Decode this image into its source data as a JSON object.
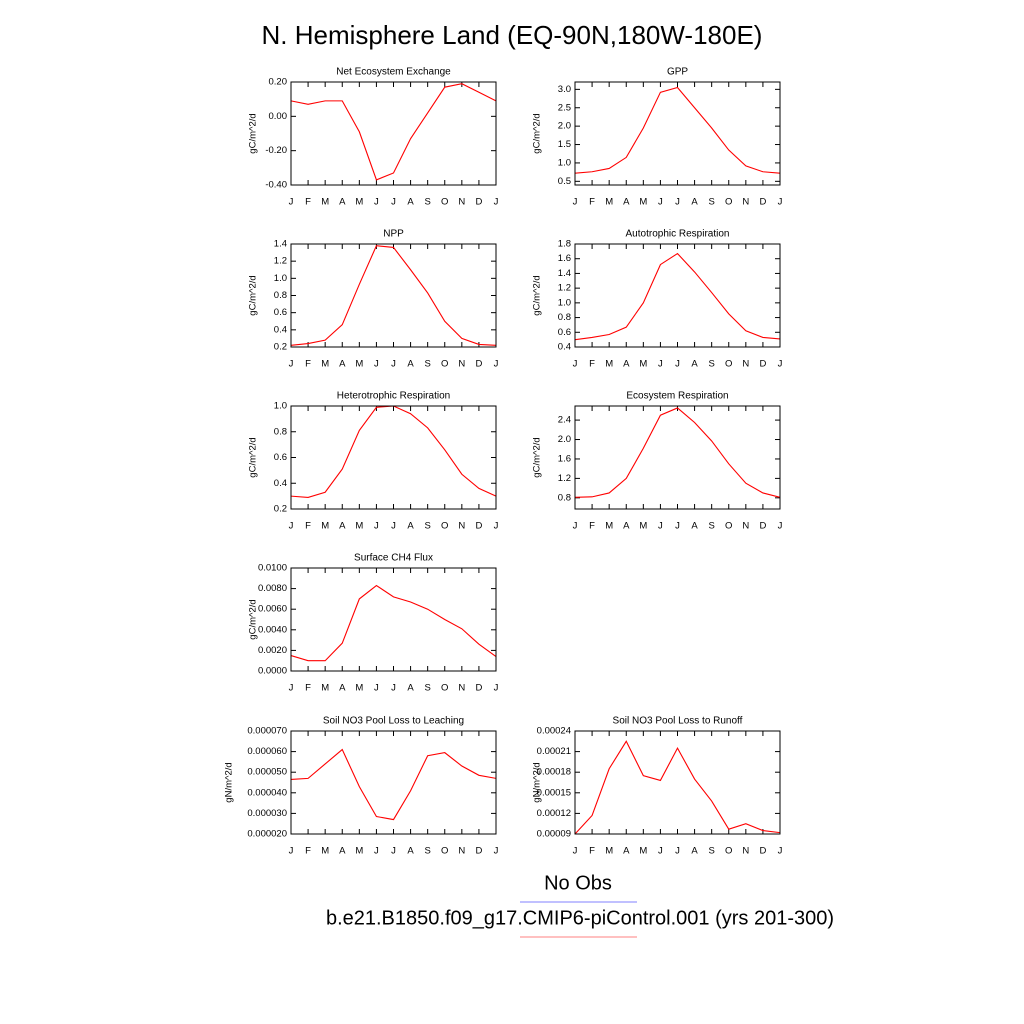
{
  "title": "N. Hemisphere Land (EQ-90N,180W-180E)",
  "legend": [
    {
      "name": "No Obs",
      "color": "#8080ff"
    },
    {
      "name": "b.e21.B1850.f09_g17.CMIP6-piControl.001 (yrs 201-300)",
      "color": "#ff8080"
    }
  ],
  "chart_data": [
    {
      "type": "line",
      "title": "Net Ecosystem Exchange",
      "ylabel": "gC/m^2/d",
      "categories": [
        "J",
        "F",
        "M",
        "A",
        "M",
        "J",
        "J",
        "A",
        "S",
        "O",
        "N",
        "D",
        "J"
      ],
      "values": [
        0.09,
        0.07,
        0.09,
        0.09,
        -0.09,
        -0.37,
        -0.33,
        -0.13,
        0.02,
        0.17,
        0.19,
        0.14,
        0.09
      ],
      "color": "#ff0000",
      "ylim": [
        -0.4,
        0.2
      ],
      "yticks": [
        {
          "value": -0.4,
          "label": "-0.40"
        },
        {
          "value": -0.2,
          "label": "-0.20"
        },
        {
          "value": 0,
          "label": "0.00"
        },
        {
          "value": 0.2,
          "label": "0.20"
        }
      ]
    },
    {
      "type": "line",
      "title": "GPP",
      "ylabel": "gC/m^2/d",
      "categories": [
        "J",
        "F",
        "M",
        "A",
        "M",
        "J",
        "J",
        "A",
        "S",
        "O",
        "N",
        "D",
        "J"
      ],
      "values": [
        0.72,
        0.76,
        0.85,
        1.15,
        1.95,
        2.92,
        3.05,
        2.5,
        1.95,
        1.35,
        0.92,
        0.76,
        0.72
      ],
      "color": "#ff0000",
      "ylim": [
        0.4,
        3.2
      ],
      "yticks": [
        0.5,
        {
          "value": 1,
          "label": "1.0"
        },
        1.5,
        {
          "value": 2,
          "label": "2.0"
        },
        2.5,
        {
          "value": 3,
          "label": "3.0"
        }
      ]
    },
    {
      "type": "line",
      "title": "NPP",
      "ylabel": "gC/m^2/d",
      "categories": [
        "J",
        "F",
        "M",
        "A",
        "M",
        "J",
        "J",
        "A",
        "S",
        "O",
        "N",
        "D",
        "J"
      ],
      "values": [
        0.22,
        0.24,
        0.28,
        0.46,
        0.93,
        1.38,
        1.36,
        1.1,
        0.83,
        0.5,
        0.3,
        0.23,
        0.22
      ],
      "color": "#ff0000",
      "ylim": [
        0.2,
        1.4
      ],
      "yticks": [
        0.2,
        0.4,
        0.6,
        0.8,
        {
          "value": 1,
          "label": "1.0"
        },
        1.2,
        1.4
      ]
    },
    {
      "type": "line",
      "title": "Autotrophic Respiration",
      "ylabel": "gC/m^2/d",
      "categories": [
        "J",
        "F",
        "M",
        "A",
        "M",
        "J",
        "J",
        "A",
        "S",
        "O",
        "N",
        "D",
        "J"
      ],
      "values": [
        0.5,
        0.53,
        0.57,
        0.67,
        1.0,
        1.52,
        1.67,
        1.42,
        1.14,
        0.85,
        0.62,
        0.53,
        0.51
      ],
      "color": "#ff0000",
      "ylim": [
        0.4,
        1.8
      ],
      "yticks": [
        0.4,
        0.6,
        0.8,
        {
          "value": 1,
          "label": "1.0"
        },
        1.2,
        1.4,
        1.6,
        1.8
      ]
    },
    {
      "type": "line",
      "title": "Heterotrophic Respiration",
      "ylabel": "gC/m^2/d",
      "categories": [
        "J",
        "F",
        "M",
        "A",
        "M",
        "J",
        "J",
        "A",
        "S",
        "O",
        "N",
        "D",
        "J"
      ],
      "values": [
        0.3,
        0.29,
        0.33,
        0.51,
        0.81,
        0.99,
        1.0,
        0.94,
        0.83,
        0.66,
        0.47,
        0.36,
        0.3
      ],
      "color": "#ff0000",
      "ylim": [
        0.2,
        1.0
      ],
      "yticks": [
        0.2,
        0.4,
        0.6,
        0.8,
        {
          "value": 1,
          "label": "1.0"
        }
      ]
    },
    {
      "type": "line",
      "title": "Ecosystem Respiration",
      "ylabel": "gC/m^2/d",
      "categories": [
        "J",
        "F",
        "M",
        "A",
        "M",
        "J",
        "J",
        "A",
        "S",
        "O",
        "N",
        "D",
        "J"
      ],
      "values": [
        0.81,
        0.82,
        0.9,
        1.2,
        1.82,
        2.5,
        2.65,
        2.35,
        1.97,
        1.5,
        1.1,
        0.9,
        0.81
      ],
      "color": "#ff0000",
      "ylim": [
        0.57,
        2.69
      ],
      "yticks": [
        0.8,
        1.2,
        1.6,
        {
          "value": 2,
          "label": "2.0"
        },
        2.4
      ]
    },
    {
      "type": "line",
      "title": "Surface CH4 Flux",
      "ylabel": "gC/m^2/d",
      "categories": [
        "J",
        "F",
        "M",
        "A",
        "M",
        "J",
        "J",
        "A",
        "S",
        "O",
        "N",
        "D",
        "J"
      ],
      "values": [
        0.0015,
        0.001,
        0.001,
        0.0027,
        0.007,
        0.0083,
        0.0072,
        0.0067,
        0.006,
        0.005,
        0.0041,
        0.0026,
        0.0014
      ],
      "color": "#ff0000",
      "ylim": [
        0,
        0.01
      ],
      "yticks": [
        {
          "value": 0,
          "label": "0.0000"
        },
        {
          "value": 0.002,
          "label": "0.0020"
        },
        {
          "value": 0.004,
          "label": "0.0040"
        },
        {
          "value": 0.006,
          "label": "0.0060"
        },
        {
          "value": 0.008,
          "label": "0.0080"
        },
        {
          "value": 0.01,
          "label": "0.0100"
        }
      ]
    },
    {
      "type": "line",
      "title": "Soil NO3 Pool Loss to Leaching",
      "ylabel": "gN/m^2/d",
      "categories": [
        "J",
        "F",
        "M",
        "A",
        "M",
        "J",
        "J",
        "A",
        "S",
        "O",
        "N",
        "D",
        "J"
      ],
      "values": [
        4.65e-05,
        4.7e-05,
        5.4e-05,
        6.1e-05,
        4.3e-05,
        2.85e-05,
        2.7e-05,
        4.1e-05,
        5.8e-05,
        5.95e-05,
        5.3e-05,
        4.85e-05,
        4.7e-05
      ],
      "color": "#ff0000",
      "ylim": [
        2e-05,
        7e-05
      ],
      "yticks": [
        {
          "value": 2e-05,
          "label": "0.000020"
        },
        {
          "value": 3e-05,
          "label": "0.000030"
        },
        {
          "value": 4e-05,
          "label": "0.000040"
        },
        {
          "value": 5e-05,
          "label": "0.000050"
        },
        {
          "value": 6e-05,
          "label": "0.000060"
        },
        {
          "value": 7e-05,
          "label": "0.000070"
        }
      ]
    },
    {
      "type": "line",
      "title": "Soil NO3 Pool Loss to Runoff",
      "ylabel": "gN/m^2/d",
      "categories": [
        "J",
        "F",
        "M",
        "A",
        "M",
        "J",
        "J",
        "A",
        "S",
        "O",
        "N",
        "D",
        "J"
      ],
      "values": [
        9e-05,
        0.000117,
        0.000185,
        0.000225,
        0.000175,
        0.000168,
        0.000215,
        0.00017,
        0.000138,
        9.7e-05,
        0.000105,
        9.5e-05,
        9.2e-05
      ],
      "color": "#ff0000",
      "ylim": [
        9e-05,
        0.00024
      ],
      "yticks": [
        9e-05,
        0.00012,
        0.00015,
        0.00018,
        0.00021,
        0.00024
      ]
    }
  ]
}
